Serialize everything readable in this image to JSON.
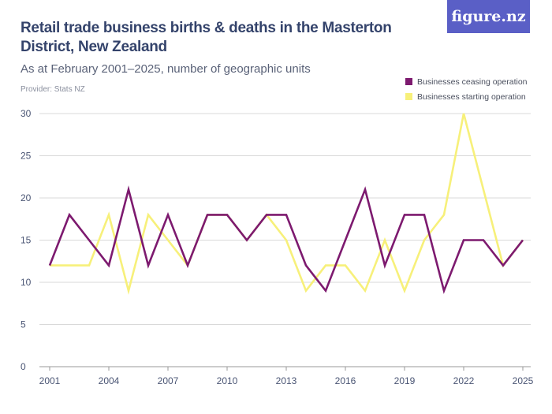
{
  "header": {
    "title": "Retail trade business births & deaths in the Masterton District, New Zealand",
    "subtitle": "As at February 2001–2025, number of geographic units",
    "provider": "Provider: Stats NZ",
    "logo": "figure.nz"
  },
  "chart_data": {
    "type": "line",
    "title": "Retail trade business births & deaths in the Masterton District, New Zealand",
    "subtitle": "As at February 2001–2025, number of geographic units",
    "x": [
      2001,
      2002,
      2003,
      2004,
      2005,
      2006,
      2007,
      2008,
      2009,
      2010,
      2011,
      2012,
      2013,
      2014,
      2015,
      2016,
      2017,
      2018,
      2019,
      2020,
      2021,
      2022,
      2023,
      2024,
      2025
    ],
    "xticks": [
      "2001",
      "2004",
      "2007",
      "2010",
      "2013",
      "2016",
      "2019",
      "2022",
      "2025"
    ],
    "yticks": [
      "0",
      "5",
      "10",
      "15",
      "20",
      "25",
      "30"
    ],
    "ylim": [
      0,
      30
    ],
    "grid": true,
    "legend_position": "top-right",
    "series": [
      {
        "name": "Businesses ceasing operation",
        "color": "#7d1a6f",
        "values": [
          12,
          18,
          15,
          12,
          21,
          12,
          18,
          12,
          18,
          18,
          15,
          18,
          18,
          12,
          9,
          15,
          21,
          12,
          18,
          18,
          9,
          15,
          15,
          12,
          15
        ]
      },
      {
        "name": "Businesses starting operation",
        "color": "#f7f07a",
        "values": [
          12,
          12,
          12,
          18,
          9,
          18,
          15,
          12,
          18,
          18,
          15,
          18,
          15,
          9,
          12,
          12,
          9,
          15,
          9,
          15,
          18,
          30,
          21,
          12,
          15
        ]
      }
    ]
  }
}
